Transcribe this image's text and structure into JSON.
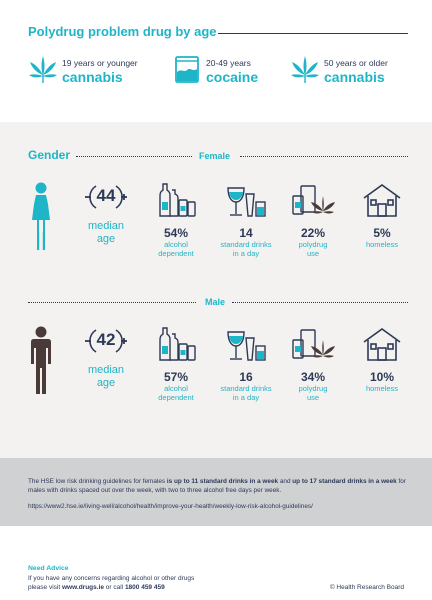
{
  "title": "Polydrug problem drug by age",
  "age_groups": [
    {
      "age": "19 years or younger",
      "drug": "cannabis",
      "icon": "cannabis-leaf-icon"
    },
    {
      "age": "20-49 years",
      "drug": "cocaine",
      "icon": "cocaine-bag-icon"
    },
    {
      "age": "50 years or older",
      "drug": "cannabis",
      "icon": "cannabis-leaf-icon"
    }
  ],
  "gender": {
    "title": "Gender",
    "female": {
      "label": "Female",
      "median_age": "44",
      "median_label_1": "median",
      "median_label_2": "age",
      "stats": [
        {
          "value": "54%",
          "caption_1": "alcohol",
          "caption_2": "dependent",
          "icon": "bottles-icon"
        },
        {
          "value": "14",
          "caption_1": "standard drinks",
          "caption_2": "in a day",
          "icon": "glasses-icon"
        },
        {
          "value": "22%",
          "caption_1": "polydrug",
          "caption_2": "use",
          "icon": "polydrug-icon"
        },
        {
          "value": "5%",
          "caption_1": "homeless",
          "caption_2": "",
          "icon": "house-icon"
        }
      ]
    },
    "male": {
      "label": "Male",
      "median_age": "42",
      "median_label_1": "median",
      "median_label_2": "age",
      "stats": [
        {
          "value": "57%",
          "caption_1": "alcohol",
          "caption_2": "dependent",
          "icon": "bottles-icon"
        },
        {
          "value": "16",
          "caption_1": "standard drinks",
          "caption_2": "in a day",
          "icon": "glasses-icon"
        },
        {
          "value": "34%",
          "caption_1": "polydrug",
          "caption_2": "use",
          "icon": "polydrug-icon"
        },
        {
          "value": "10%",
          "caption_1": "homeless",
          "caption_2": "",
          "icon": "house-icon"
        }
      ]
    }
  },
  "guidelines": {
    "line1_a": "The HSE low risk drinking guidelines for females ",
    "line1_b": "is up to 11 standard drinks in a week",
    "line1_c": " and ",
    "line1_d": "up to 17 standard drinks",
    "line2_a": "in a week",
    "line2_b": " for males with drinks spaced out over the week, with two to three alcohol free days per week.",
    "url": "https://www2.hse.ie/living-well/alcohol/health/improve-your-health/weekly-low-risk-alcohol-guidelines/"
  },
  "footer": {
    "need_advice": "Need Advice",
    "line1": "If you have any concerns regarding alcohol or other drugs",
    "line2_a": "please visit ",
    "line2_b": "www.drugs.ie",
    "line2_c": " or call ",
    "line2_d": "1800 459 459",
    "copyright": "© Health Research Board"
  },
  "colors": {
    "accent": "#1fb5c8",
    "navy": "#2d3a57",
    "band": "#f3f2f0",
    "guide": "#cfd1d3",
    "female_figure": "#1fb5c8",
    "male_figure": "#4a3b38"
  }
}
